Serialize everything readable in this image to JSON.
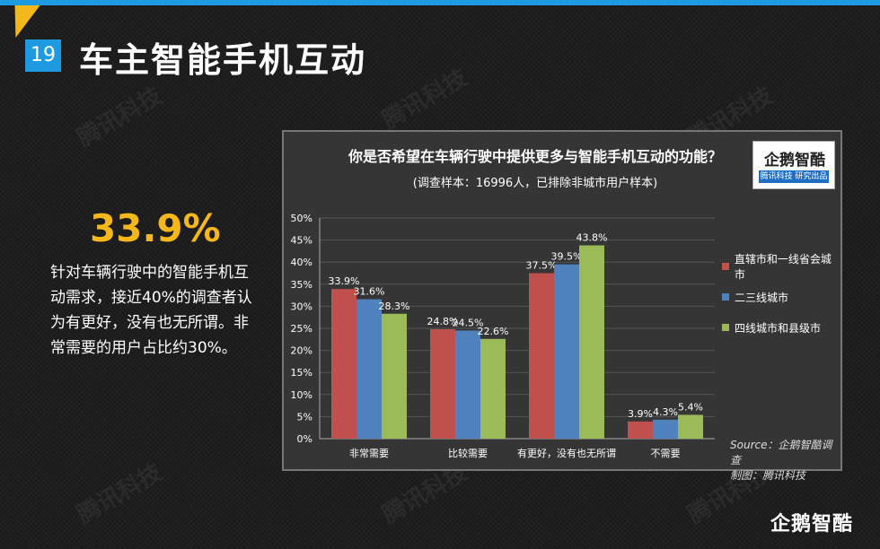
{
  "page": {
    "number": "19",
    "title": "车主智能手机互动"
  },
  "watermark": "腾讯科技",
  "summary": {
    "stat": "33.9%",
    "text": "针对车辆行驶中的智能手机互动需求，接近40%的调查者认为有更好，没有也无所谓。非常需要的用户占比约30%。"
  },
  "logo": {
    "brand": "企鹅智酷",
    "tag": "腾讯科技 研究出品"
  },
  "footer_logo": "企鹅智酷",
  "chart_data": {
    "type": "bar",
    "title": "你是否希望在车辆行驶中提供更多与智能手机互动的功能？",
    "subtitle": "(调查样本：16996人，已排除非城市用户样本)",
    "categories": [
      "非常需要",
      "比较需要",
      "有更好，没有也无所谓",
      "不需要"
    ],
    "series": [
      {
        "name": "直辖市和一线省会城市",
        "color": "#c0504d",
        "values": [
          33.9,
          24.8,
          37.5,
          3.9
        ]
      },
      {
        "name": "二三线城市",
        "color": "#4f81bd",
        "values": [
          31.6,
          24.5,
          39.5,
          4.3
        ]
      },
      {
        "name": "四线城市和县级市",
        "color": "#9bbb59",
        "values": [
          28.3,
          22.6,
          43.8,
          5.4
        ]
      }
    ],
    "ylim": [
      0,
      50
    ],
    "yticks": [
      "0%",
      "5%",
      "10%",
      "15%",
      "20%",
      "25%",
      "30%",
      "35%",
      "40%",
      "45%",
      "50%"
    ],
    "data_labels": [
      [
        "33.9%",
        "24.8%",
        "37.5%",
        "3.9%"
      ],
      [
        "31.6%",
        "24.5%",
        "39.5%",
        "4.3%"
      ],
      [
        "28.3%",
        "22.6%",
        "43.8%",
        "5.4%"
      ]
    ],
    "source": "Source：企鹅智酷调查",
    "maker": "制图：腾讯科技",
    "legend_position": "right"
  }
}
